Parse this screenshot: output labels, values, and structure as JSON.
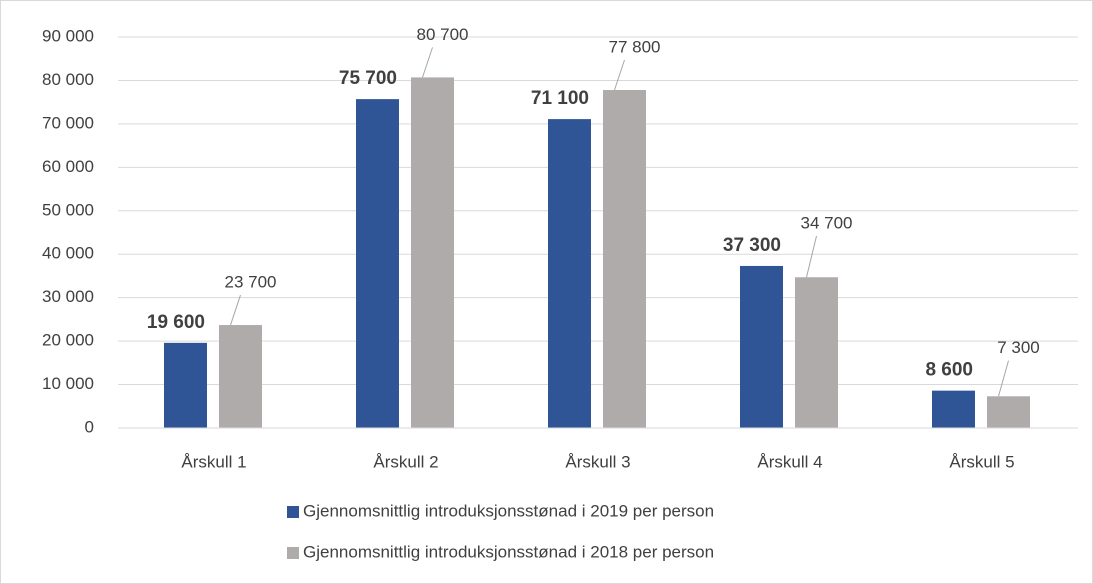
{
  "chart_data": {
    "type": "bar",
    "categories": [
      "Årskull 1",
      "Årskull 2",
      "Årskull 3",
      "Årskull 4",
      "Årskull 5"
    ],
    "series": [
      {
        "name": "Gjennomsnittlig introduksjonsstønad i 2019 per person",
        "color": "#2f5597",
        "values": [
          19600,
          75700,
          71100,
          37300,
          8600
        ],
        "value_labels": [
          "19 600",
          "75 700",
          "71 100",
          "37 300",
          "8 600"
        ]
      },
      {
        "name": "Gjennomsnittlig introduksjonsstønad i 2018 per person",
        "color": "#afabab",
        "values": [
          23700,
          80700,
          77800,
          34700,
          7300
        ],
        "value_labels": [
          "23 700",
          "80 700",
          "77 800",
          "34 700",
          "7 300"
        ]
      }
    ],
    "ylim": [
      0,
      90000
    ],
    "yticks": [
      0,
      {
        "value": 10000,
        "label": "10 000"
      },
      {
        "value": 20000,
        "label": "20 000"
      },
      {
        "value": 30000,
        "label": "30 000"
      },
      {
        "value": 40000,
        "label": "40 000"
      },
      {
        "value": 50000,
        "label": "50 000"
      },
      {
        "value": 60000,
        "label": "60 000"
      },
      {
        "value": 70000,
        "label": "70 000"
      },
      {
        "value": 80000,
        "label": "80 000"
      },
      {
        "value": 90000,
        "label": "90 000"
      }
    ],
    "grid": true,
    "legend": "bottom"
  }
}
